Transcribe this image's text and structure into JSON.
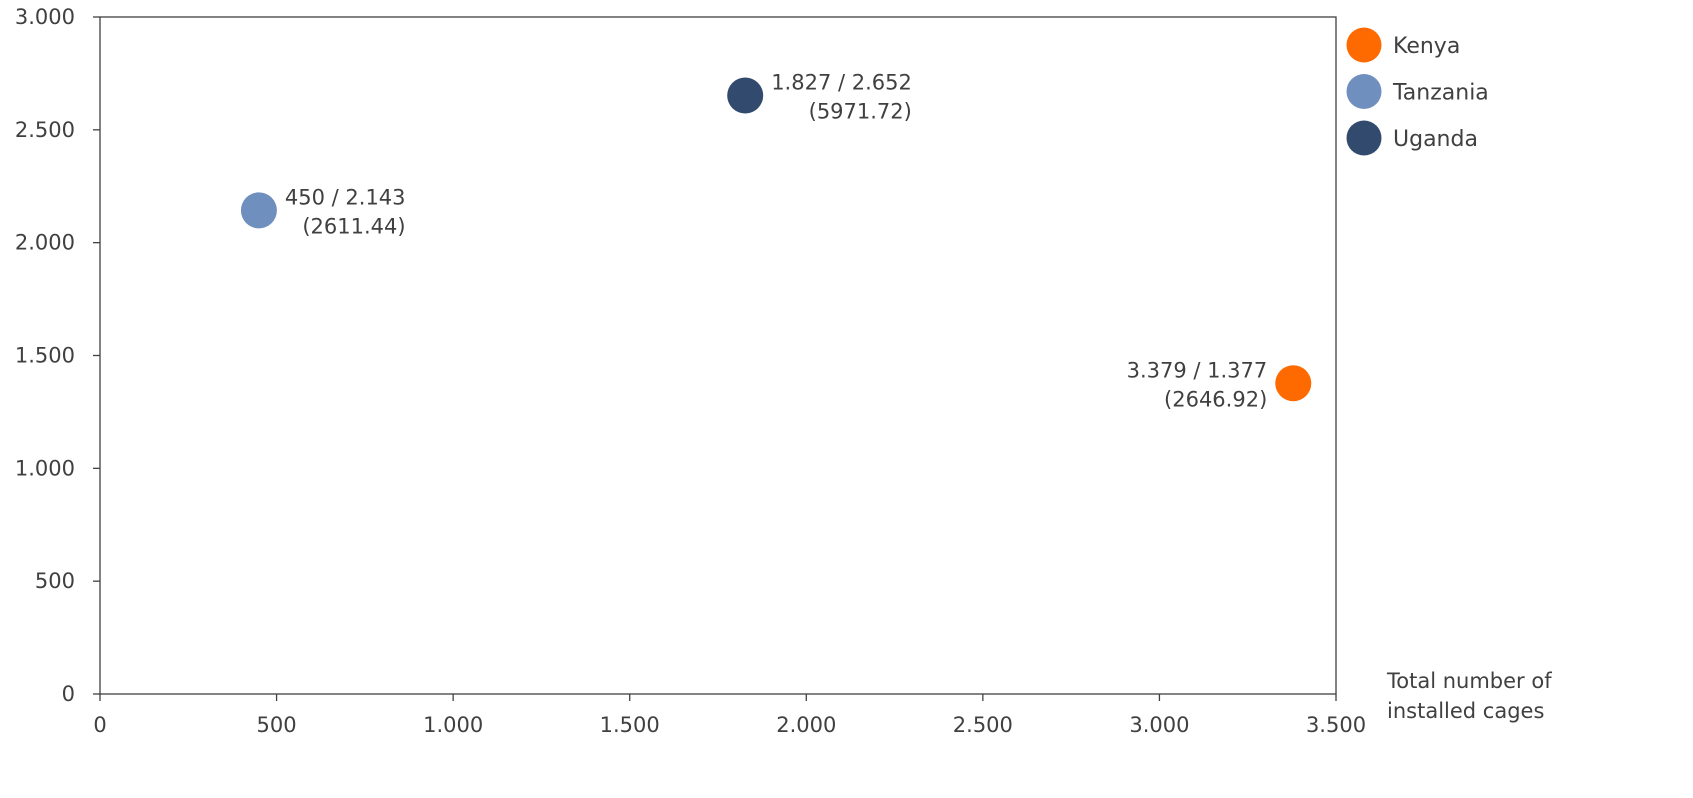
{
  "chart_data": {
    "type": "scatter",
    "xlabel": "Total number of installed cages",
    "ylabel": "",
    "xlim": [
      0,
      3500
    ],
    "ylim": [
      0,
      3000
    ],
    "x_ticks": [
      0,
      500,
      1000,
      1500,
      2000,
      2500,
      3000,
      3500
    ],
    "x_tick_labels": [
      "0",
      "500",
      "1.000",
      "1.500",
      "2.000",
      "2.500",
      "3.000",
      "3.500"
    ],
    "y_ticks": [
      0,
      500,
      1000,
      1500,
      2000,
      2500,
      3000
    ],
    "y_tick_labels": [
      "0",
      "500",
      "1.000",
      "1.500",
      "2.000",
      "2.500",
      "3.000"
    ],
    "grid": false,
    "legend_position": "right",
    "series": [
      {
        "name": "Kenya",
        "color": "#FF6A00",
        "x": 3379,
        "y": 1377,
        "label_line1": "3.379 / 1.377",
        "label_line2": "(2646.92)",
        "label_side": "left"
      },
      {
        "name": "Tanzania",
        "color": "#6F8FBE",
        "x": 450,
        "y": 2143,
        "label_line1": "450 / 2.143",
        "label_line2": "(2611.44)",
        "label_side": "right"
      },
      {
        "name": "Uganda",
        "color": "#324A6D",
        "x": 1827,
        "y": 2652,
        "label_line1": "1.827 / 2.652",
        "label_line2": "(5971.72)",
        "label_side": "right"
      }
    ]
  }
}
